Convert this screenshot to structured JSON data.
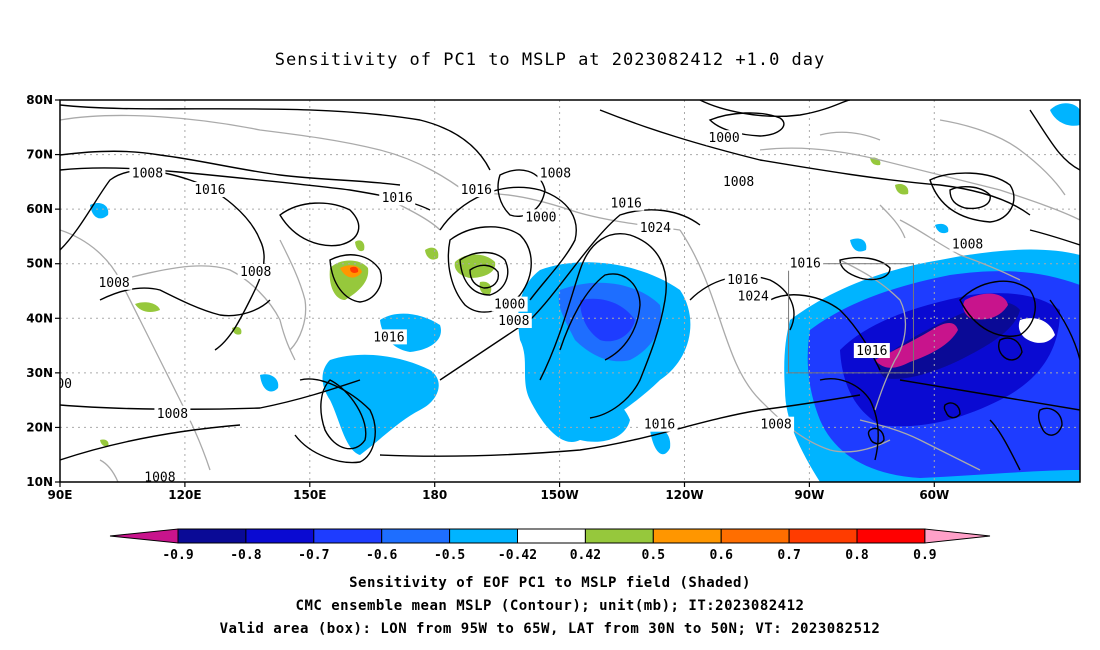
{
  "title": "Sensitivity of PC1 to MSLP at 2023082412 +1.0 day",
  "map": {
    "lat_ticks": [
      "80N",
      "70N",
      "60N",
      "50N",
      "40N",
      "30N",
      "20N",
      "10N"
    ],
    "lon_ticks": [
      "90E",
      "120E",
      "150E",
      "180",
      "150W",
      "120W",
      "90W",
      "60W"
    ],
    "lon_range": [
      90,
      335
    ],
    "lat_range": [
      10,
      80
    ],
    "grid": true,
    "valid_box": {
      "lon": [
        265,
        295
      ],
      "lat": [
        30,
        50
      ]
    },
    "contour_labels": [
      {
        "text": "1008",
        "lon": 111,
        "lat": 66.5
      },
      {
        "text": "1016",
        "lon": 126,
        "lat": 63.5
      },
      {
        "text": "1016",
        "lon": 171,
        "lat": 62
      },
      {
        "text": "1016",
        "lon": 190,
        "lat": 63.5
      },
      {
        "text": "1008",
        "lon": 209,
        "lat": 66.5
      },
      {
        "text": "1000",
        "lon": 205.5,
        "lat": 58.5
      },
      {
        "text": "1016",
        "lon": 226,
        "lat": 61
      },
      {
        "text": "1024",
        "lon": 233,
        "lat": 56.5
      },
      {
        "text": "1008",
        "lon": 137,
        "lat": 48.5
      },
      {
        "text": "1008",
        "lon": 103,
        "lat": 46.5
      },
      {
        "text": "1000",
        "lon": 198,
        "lat": 42.5
      },
      {
        "text": "1008",
        "lon": 199,
        "lat": 39.5
      },
      {
        "text": "1016",
        "lon": 169,
        "lat": 36.5
      },
      {
        "text": "1016",
        "lon": 254,
        "lat": 47
      },
      {
        "text": "1024",
        "lon": 256.5,
        "lat": 44
      },
      {
        "text": "1016",
        "lon": 269,
        "lat": 50
      },
      {
        "text": "1000",
        "lon": 249.5,
        "lat": 73
      },
      {
        "text": "1008",
        "lon": 253,
        "lat": 65
      },
      {
        "text": "1008",
        "lon": 308,
        "lat": 53.5
      },
      {
        "text": "1016",
        "lon": 285,
        "lat": 34
      },
      {
        "text": "00",
        "lon": 91,
        "lat": 28
      },
      {
        "text": "1008",
        "lon": 117,
        "lat": 22.5
      },
      {
        "text": "1016",
        "lon": 234,
        "lat": 20.5
      },
      {
        "text": "1008",
        "lon": 262,
        "lat": 20.5
      },
      {
        "text": "1008",
        "lon": 114,
        "lat": 10.8
      }
    ]
  },
  "colorbar": {
    "labels": [
      "-0.9",
      "-0.8",
      "-0.7",
      "-0.6",
      "-0.5",
      "-0.42",
      "0.42",
      "0.5",
      "0.6",
      "0.7",
      "0.8",
      "0.9"
    ],
    "colors": {
      "below": "#c8148c",
      "bins": [
        "#0a0a96",
        "#0a0ad2",
        "#1e3cff",
        "#1e6eff",
        "#00b4ff",
        "#ffffff",
        "#96c83c",
        "#ff9600",
        "#ff6e00",
        "#ff3c00",
        "#ff0000"
      ],
      "above": "#ffa0c8"
    }
  },
  "captions": [
    "Sensitivity of EOF PC1 to MSLP field (Shaded)",
    "CMC ensemble mean MSLP (Contour); unit(mb); IT:2023082412",
    "Valid area (box): LON from 95W to 65W, LAT from 30N to 50N; VT: 2023082512"
  ]
}
